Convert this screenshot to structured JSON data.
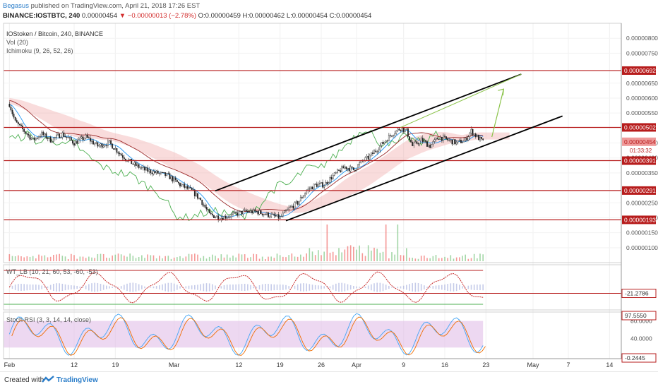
{
  "header": {
    "user": "Begasus",
    "published": "published on TradingView.com, April 21, 2018 17:26 EST",
    "symbol_line": "BINANCE:IOSTBTC, 240",
    "last": "0.00000454",
    "change": "−0.00000013 (−2.78%)",
    "ohlc": "O:0.00000459 H:0.00000462 L:0.00000454 C:0.00000454"
  },
  "legend": {
    "title": "IOStoken / Bitcoin, 240, BINANCE",
    "vol": "Vol (20)",
    "ichimoku": "Ichimoku (9, 26, 52, 26)",
    "wt": "WT_LB (10, 21, 60, 53, -60, -53)",
    "stoch": "Stoch RSI (3, 3, 14, 14, close)"
  },
  "footer": {
    "created": "Created with",
    "brand": "TradingView"
  },
  "colors": {
    "candle_up": "#222222",
    "candle_down": "#222222",
    "level_line": "#b71c1c",
    "trend": "#000000",
    "projection": "#8bc34a",
    "red_arrow": "#e53935",
    "tenkan": "#2196f3",
    "kijun": "#9c2a2a",
    "lagging": "#4caf50",
    "cloud_bull": "#a5d6a7",
    "cloud_bear": "#ef9a9a",
    "stoch_band": "#e1bee7"
  },
  "chart_data": {
    "type": "candlestick",
    "x_ticks": [
      "Feb",
      "12",
      "19",
      "Mar",
      "12",
      "19",
      "26",
      "Apr",
      "9",
      "16",
      "23",
      "May",
      "7",
      "14"
    ],
    "x_tick_days": [
      0,
      11,
      18,
      28,
      39,
      46,
      53,
      59,
      67,
      74,
      81,
      89,
      95,
      102
    ],
    "y_range": [
      5e-07,
      8.5e-06
    ],
    "y_ticks": [
      "0.00000800",
      "0.00000750",
      "0.00000650",
      "0.00000600",
      "0.00000550",
      "0.00000450",
      "0.00000400",
      "0.00000350",
      "0.00000250",
      "0.00000200",
      "0.00000150",
      "0.00000100"
    ],
    "y_tick_values": [
      8e-06,
      7.5e-06,
      6.5e-06,
      6e-06,
      5.5e-06,
      4.5e-06,
      4e-06,
      3.5e-06,
      2.5e-06,
      2e-06,
      1.5e-06,
      1e-06
    ],
    "horizontal_levels": [
      {
        "label": "0.00000692",
        "value": 6.92e-06
      },
      {
        "label": "0.00000502",
        "value": 5.02e-06
      },
      {
        "label": "0.00000391",
        "value": 3.91e-06
      },
      {
        "label": "0.00000291",
        "value": 2.91e-06
      },
      {
        "label": "0.00000193",
        "value": 1.93e-06
      }
    ],
    "last_price": {
      "label": "0.00000454",
      "value": 4.54e-06,
      "countdown": "01:33:32"
    },
    "price_path": [
      {
        "d": 0,
        "v": 5.8e-06
      },
      {
        "d": 1,
        "v": 5.2e-06
      },
      {
        "d": 2.5,
        "v": 4.9e-06
      },
      {
        "d": 4,
        "v": 4.6e-06
      },
      {
        "d": 5.5,
        "v": 4.8e-06
      },
      {
        "d": 7,
        "v": 4.6e-06
      },
      {
        "d": 9,
        "v": 4.8e-06
      },
      {
        "d": 11,
        "v": 4.5e-06
      },
      {
        "d": 13,
        "v": 4.7e-06
      },
      {
        "d": 15,
        "v": 4.4e-06
      },
      {
        "d": 17,
        "v": 4.5e-06
      },
      {
        "d": 19,
        "v": 4.1e-06
      },
      {
        "d": 21,
        "v": 3.8e-06
      },
      {
        "d": 23,
        "v": 3.6e-06
      },
      {
        "d": 25,
        "v": 3.5e-06
      },
      {
        "d": 27,
        "v": 3.4e-06
      },
      {
        "d": 29,
        "v": 3.1e-06
      },
      {
        "d": 31,
        "v": 2.9e-06
      },
      {
        "d": 32.5,
        "v": 2.6e-06
      },
      {
        "d": 34,
        "v": 2.1e-06
      },
      {
        "d": 36,
        "v": 2e-06
      },
      {
        "d": 38,
        "v": 2.1e-06
      },
      {
        "d": 40,
        "v": 2.2e-06
      },
      {
        "d": 42,
        "v": 2.2e-06
      },
      {
        "d": 44,
        "v": 2.1e-06
      },
      {
        "d": 46,
        "v": 2e-06
      },
      {
        "d": 47.5,
        "v": 2.3e-06
      },
      {
        "d": 49,
        "v": 2.5e-06
      },
      {
        "d": 50.5,
        "v": 2.9e-06
      },
      {
        "d": 52,
        "v": 3.1e-06
      },
      {
        "d": 53.5,
        "v": 3.1e-06
      },
      {
        "d": 55,
        "v": 3.4e-06
      },
      {
        "d": 57,
        "v": 3.7e-06
      },
      {
        "d": 58.5,
        "v": 3.6e-06
      },
      {
        "d": 60,
        "v": 3.9e-06
      },
      {
        "d": 61,
        "v": 4e-06
      },
      {
        "d": 62,
        "v": 4.2e-06
      },
      {
        "d": 63.5,
        "v": 4.5e-06
      },
      {
        "d": 65,
        "v": 4.8e-06
      },
      {
        "d": 66.5,
        "v": 5e-06
      },
      {
        "d": 67.5,
        "v": 4.9e-06
      },
      {
        "d": 68.5,
        "v": 4.4e-06
      },
      {
        "d": 70,
        "v": 4.6e-06
      },
      {
        "d": 71.5,
        "v": 4.4e-06
      },
      {
        "d": 73,
        "v": 4.7e-06
      },
      {
        "d": 74.5,
        "v": 4.6e-06
      },
      {
        "d": 76,
        "v": 4.5e-06
      },
      {
        "d": 77.5,
        "v": 4.6e-06
      },
      {
        "d": 78.5,
        "v": 4.9e-06
      },
      {
        "d": 79.5,
        "v": 4.7e-06
      },
      {
        "d": 80.5,
        "v": 4.54e-06
      }
    ],
    "trend_lines": [
      {
        "name": "upper-channel",
        "d1": 35,
        "v1": 2.9e-06,
        "d2": 87,
        "v2": 6.8e-06
      },
      {
        "name": "lower-channel",
        "d1": 47,
        "v1": 1.9e-06,
        "d2": 94,
        "v2": 5.4e-06
      },
      {
        "name": "mid-line",
        "d1": 66.5,
        "v1": 5.02e-06,
        "d2": 87,
        "v2": 6.8e-06
      }
    ],
    "projection": [
      {
        "d": 82,
        "v": 4.7e-06
      },
      {
        "d": 84,
        "v": 6.3e-06
      }
    ],
    "wt_lb": {
      "label": "-21.2786",
      "value": -21.2786,
      "ob": 60,
      "os": -60,
      "range": [
        -80,
        80
      ]
    },
    "stoch_rsi": {
      "label_top": "97.5550",
      "label_bottom": "-0.2445",
      "ticks": [
        "80.0000",
        "40.0000"
      ],
      "tick_values": [
        80,
        40
      ],
      "range": [
        -5,
        100
      ]
    }
  }
}
